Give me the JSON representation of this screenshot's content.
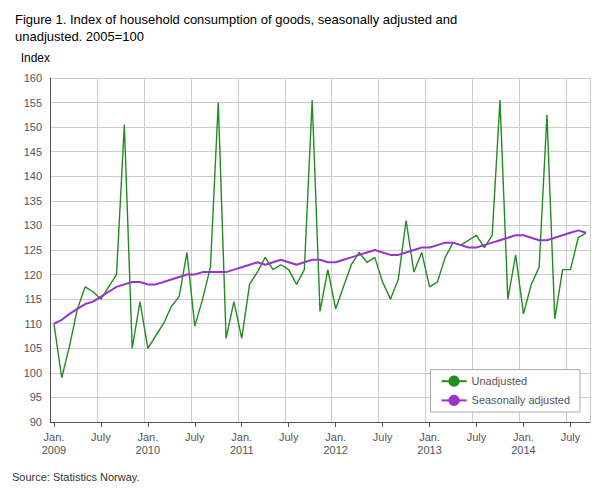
{
  "chart_data": {
    "type": "line",
    "title": "Figure 1. Index of household consumption of goods, seasonally adjusted and\nunadjusted. 2005=100",
    "ylabel": "Index",
    "annotations": [
      "Source: Statistics Norway."
    ],
    "categories": [
      "Jan.\n2009",
      null,
      null,
      null,
      null,
      null,
      "July",
      null,
      null,
      null,
      null,
      null,
      "Jan.\n2010",
      null,
      null,
      null,
      null,
      null,
      "July",
      null,
      null,
      null,
      null,
      null,
      "Jan.\n2011",
      null,
      null,
      null,
      null,
      null,
      "July",
      null,
      null,
      null,
      null,
      null,
      "Jan.\n2012",
      null,
      null,
      null,
      null,
      null,
      "July",
      null,
      null,
      null,
      null,
      null,
      "Jan.\n2013",
      null,
      null,
      null,
      null,
      null,
      "July",
      null,
      null,
      null,
      null,
      null,
      "Jan.\n2014",
      null,
      null,
      null,
      null,
      null,
      "July",
      null,
      null
    ],
    "series": [
      {
        "name": "Unadjusted",
        "color": "#228B22",
        "values": [
          110.0,
          99.0,
          105.5,
          113.0,
          117.5,
          116.5,
          115.0,
          117.5,
          120.0,
          150.5,
          105.0,
          114.5,
          105.0,
          107.5,
          110.0,
          113.5,
          115.5,
          124.5,
          109.5,
          115.0,
          121.5,
          155.0,
          107.0,
          114.5,
          107.0,
          118.0,
          120.5,
          123.5,
          121.0,
          122.0,
          121.0,
          118.0,
          121.0,
          155.5,
          112.5,
          121.0,
          113.0,
          117.5,
          122.0,
          124.5,
          122.5,
          123.5,
          118.5,
          115.0,
          119.0,
          131.0,
          120.5,
          124.5,
          117.5,
          118.5,
          123.5,
          126.5,
          126.0,
          127.0,
          128.0,
          125.5,
          128.0,
          155.5,
          115.0,
          124.0,
          112.0,
          118.0,
          121.5,
          152.5,
          111.0,
          121.0,
          121.0,
          127.5,
          128.5
        ]
      },
      {
        "name": "Seasonally adjusted",
        "color": "#9933cc",
        "values": [
          110.0,
          110.8,
          112.0,
          113.0,
          114.0,
          114.5,
          115.5,
          116.5,
          117.5,
          118.0,
          118.5,
          118.5,
          118.0,
          118.0,
          118.5,
          119.0,
          119.5,
          120.0,
          120.0,
          120.5,
          120.5,
          120.5,
          120.5,
          121.0,
          121.5,
          122.0,
          122.5,
          122.0,
          122.5,
          123.0,
          122.5,
          122.0,
          122.5,
          123.0,
          123.0,
          122.5,
          122.5,
          123.0,
          123.5,
          124.0,
          124.5,
          125.0,
          124.5,
          124.0,
          124.0,
          124.5,
          125.0,
          125.5,
          125.5,
          126.0,
          126.5,
          126.5,
          126.0,
          125.5,
          125.5,
          126.0,
          126.5,
          127.0,
          127.5,
          128.0,
          128.0,
          127.5,
          127.0,
          127.0,
          127.5,
          128.0,
          128.5,
          129.0,
          128.5
        ]
      }
    ],
    "ylim": [
      90,
      160
    ],
    "yticks": [
      90,
      95,
      100,
      105,
      110,
      115,
      120,
      125,
      130,
      135,
      140,
      145,
      150,
      155,
      160
    ],
    "grid": true,
    "legend": "lower right"
  }
}
